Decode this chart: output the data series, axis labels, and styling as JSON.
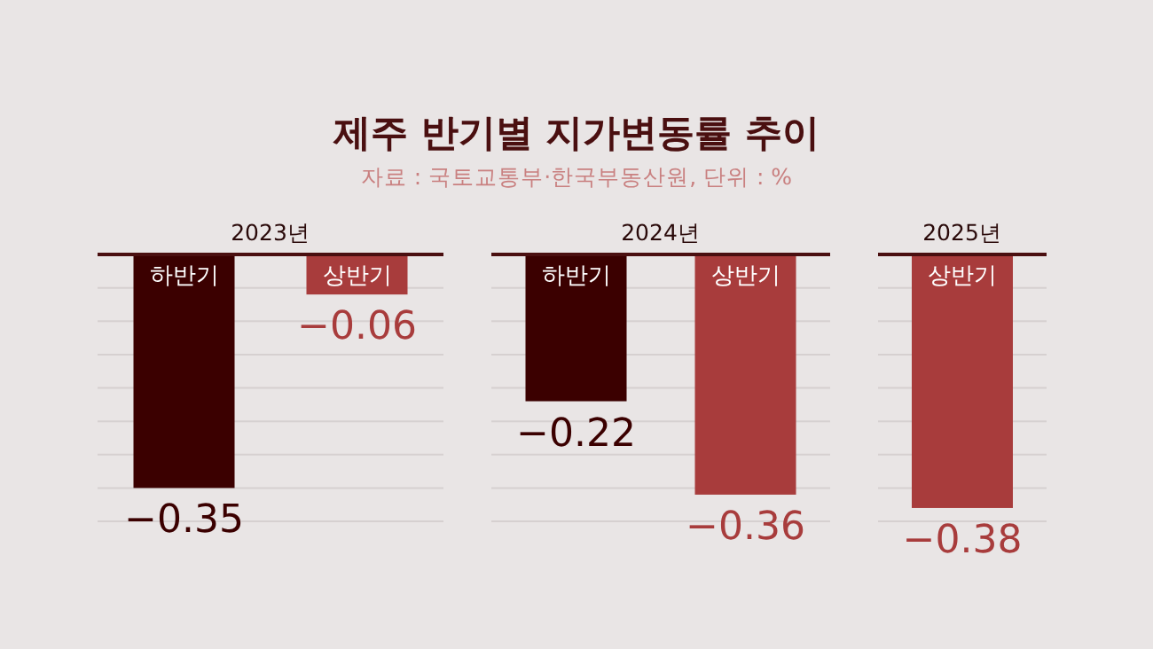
{
  "chart_data": [
    {
      "type": "bar",
      "title": "제주 반기별 지가변동률 추이",
      "annotations": [
        "자료 : 국토교통부·한국부동산원, 단위 : %"
      ],
      "xlabel": "2023년",
      "categories": [
        "하반기",
        "상반기"
      ],
      "values": [
        -0.35,
        -0.06
      ],
      "colors": [
        "#3b0000",
        "#a83c3c"
      ],
      "data_labels": true,
      "ylim": [
        -0.4,
        0
      ],
      "yticks": [
        {
          "value": -0.05,
          "label": null
        },
        {
          "value": -0.1,
          "label": null
        },
        {
          "value": -0.15,
          "label": null
        },
        {
          "value": -0.2,
          "label": null
        },
        {
          "value": -0.25,
          "label": null
        },
        {
          "value": -0.3,
          "label": null
        },
        {
          "value": -0.35,
          "label": null
        },
        {
          "value": -0.4,
          "label": null
        }
      ],
      "grid": "y"
    },
    {
      "type": "bar",
      "xlabel": "2024년",
      "categories": [
        "하반기",
        "상반기"
      ],
      "values": [
        -0.22,
        -0.36
      ],
      "colors": [
        "#3b0000",
        "#a83c3c"
      ],
      "data_labels": true,
      "ylim": [
        -0.4,
        0
      ],
      "yticks": [
        {
          "value": -0.05,
          "label": null
        },
        {
          "value": -0.1,
          "label": null
        },
        {
          "value": -0.15,
          "label": null
        },
        {
          "value": -0.2,
          "label": null
        },
        {
          "value": -0.25,
          "label": null
        },
        {
          "value": -0.3,
          "label": null
        },
        {
          "value": -0.35,
          "label": null
        },
        {
          "value": -0.4,
          "label": null
        }
      ],
      "grid": "y"
    },
    {
      "type": "bar",
      "xlabel": "2025년",
      "categories": [
        "상반기"
      ],
      "values": [
        -0.38
      ],
      "colors": [
        "#a83c3c"
      ],
      "data_labels": true,
      "ylim": [
        -0.4,
        0
      ],
      "yticks": [
        {
          "value": -0.05,
          "label": null
        },
        {
          "value": -0.1,
          "label": null
        },
        {
          "value": -0.15,
          "label": null
        },
        {
          "value": -0.2,
          "label": null
        },
        {
          "value": -0.25,
          "label": null
        },
        {
          "value": -0.3,
          "label": null
        },
        {
          "value": -0.35,
          "label": null
        },
        {
          "value": -0.4,
          "label": null
        }
      ],
      "grid": "y"
    }
  ]
}
